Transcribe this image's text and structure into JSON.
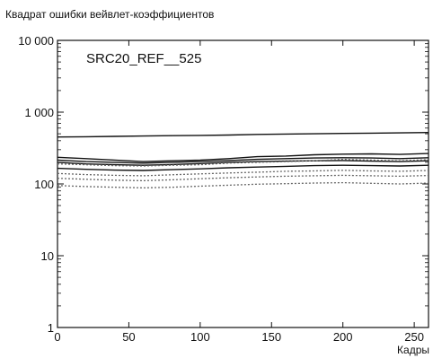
{
  "chart_data": {
    "type": "line",
    "ylabel": "Квадрат ошибки вейвлет-коэффициентов",
    "xlabel": "Кадры",
    "annotation": "SRC20_REF__525",
    "xlim": [
      0,
      260
    ],
    "ylim": [
      1,
      10000
    ],
    "yscale": "log",
    "grid": false,
    "xticks": [
      0,
      50,
      100,
      150,
      200,
      250
    ],
    "xtick_labels": [
      "0",
      "50",
      "100",
      "150",
      "200",
      "250"
    ],
    "yticks": [
      1,
      10,
      100,
      1000,
      10000
    ],
    "ytick_labels": [
      "1",
      "10",
      "100",
      "1 000",
      "10 000"
    ],
    "x": [
      0,
      20,
      40,
      60,
      80,
      100,
      120,
      140,
      160,
      180,
      200,
      220,
      240,
      260
    ],
    "series": [
      {
        "style": "solid",
        "values": [
          450,
          455,
          460,
          465,
          470,
          475,
          480,
          490,
          495,
          500,
          505,
          510,
          515,
          520
        ]
      },
      {
        "style": "solid",
        "values": [
          235,
          225,
          215,
          205,
          210,
          215,
          225,
          240,
          245,
          255,
          260,
          262,
          258,
          265
        ]
      },
      {
        "style": "solid",
        "values": [
          215,
          205,
          200,
          195,
          200,
          205,
          212,
          220,
          225,
          230,
          232,
          230,
          225,
          232
        ]
      },
      {
        "style": "solid",
        "values": [
          200,
          190,
          185,
          182,
          186,
          192,
          200,
          205,
          208,
          210,
          212,
          208,
          205,
          210
        ]
      },
      {
        "style": "dotted",
        "values": [
          190,
          185,
          180,
          178,
          182,
          185,
          195,
          200,
          205,
          210,
          220,
          215,
          210,
          218
        ]
      },
      {
        "style": "solid",
        "values": [
          165,
          160,
          156,
          154,
          158,
          162,
          168,
          172,
          176,
          180,
          182,
          180,
          178,
          182
        ]
      },
      {
        "style": "dotted",
        "values": [
          140,
          135,
          132,
          130,
          134,
          138,
          142,
          146,
          150,
          152,
          155,
          152,
          150,
          154
        ]
      },
      {
        "style": "dotted",
        "values": [
          120,
          116,
          113,
          111,
          114,
          118,
          122,
          125,
          128,
          130,
          132,
          130,
          128,
          131
        ]
      },
      {
        "style": "dotted",
        "values": [
          95,
          92,
          90,
          88,
          90,
          93,
          96,
          99,
          101,
          103,
          104,
          102,
          100,
          103
        ]
      }
    ]
  }
}
